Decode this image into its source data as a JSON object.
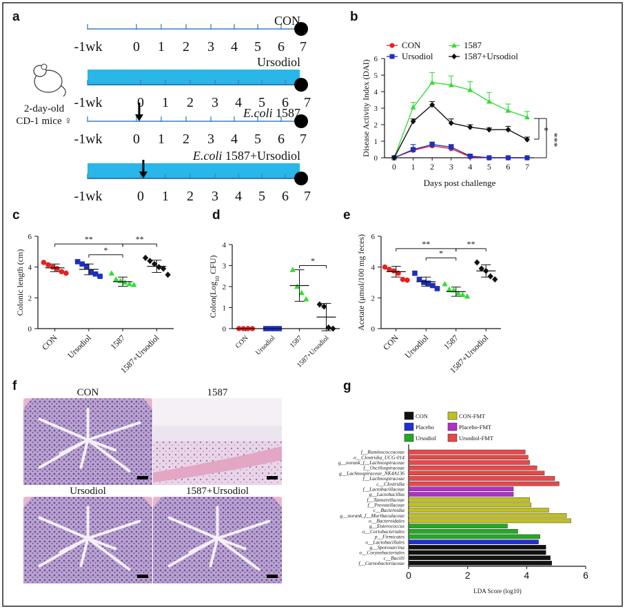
{
  "panel_letters": [
    "a",
    "b",
    "c",
    "d",
    "e",
    "f",
    "g"
  ],
  "panel_a": {
    "tick_labels": [
      "-1wk",
      "0",
      "1",
      "2",
      "3",
      "4",
      "5",
      "6",
      "7"
    ],
    "groups": [
      {
        "label": "CON",
        "italic_part": "",
        "filled": false,
        "arrow": false
      },
      {
        "label": "Ursodiol",
        "italic_part": "",
        "filled": true,
        "arrow": false
      },
      {
        "label": " 1587",
        "italic_part": "E.coli",
        "filled": false,
        "arrow": true
      },
      {
        "label": " 1587+Ursodiol",
        "italic_part": "E.coli",
        "filled": true,
        "arrow": true
      }
    ],
    "mouse_label_1": "2-day-old",
    "mouse_label_2": "CD-1 mice ♀",
    "colors": {
      "bar": "#29b6e8",
      "line": "#3a7fc0"
    }
  },
  "chart_data": [
    {
      "panel": "b",
      "type": "line",
      "ylabel": "Disease Activity Index (DAI)",
      "xlabel": "Days post challenge",
      "x": [
        0,
        1,
        2,
        3,
        4,
        5,
        6,
        7
      ],
      "ylim": [
        0,
        6
      ],
      "yticks": [
        "0",
        "1",
        "2",
        "3",
        "4",
        "5",
        "6"
      ],
      "xticks": [
        "0",
        "1",
        "2",
        "3",
        "4",
        "5",
        "6",
        "7"
      ],
      "series": [
        {
          "name": "CON",
          "color": "#e82020",
          "marker": "circle",
          "values": [
            0,
            0.45,
            0.72,
            0.55,
            0.05,
            0,
            0,
            0
          ],
          "errors": [
            0,
            0.1,
            0.1,
            0.1,
            0.05,
            0,
            0,
            0
          ]
        },
        {
          "name": "Ursodiol",
          "color": "#1f2fbf",
          "marker": "square",
          "values": [
            0,
            0.5,
            0.8,
            0.65,
            0.1,
            0,
            0,
            0
          ],
          "errors": [
            0,
            0.3,
            0.15,
            0.15,
            0.1,
            0,
            0,
            0
          ]
        },
        {
          "name": "1587",
          "color": "#33dd33",
          "marker": "triangle",
          "values": [
            0,
            3.05,
            4.55,
            4.4,
            4.1,
            3.4,
            2.85,
            2.45
          ],
          "errors": [
            0,
            0.3,
            0.6,
            0.55,
            0.5,
            0.55,
            0.4,
            0.35
          ]
        },
        {
          "name": "1587+Ursodiol",
          "color": "#111111",
          "marker": "diamond",
          "values": [
            0,
            2.2,
            3.2,
            2.1,
            1.85,
            1.7,
            1.7,
            1.1
          ],
          "errors": [
            0,
            0.15,
            0.2,
            0.25,
            0.15,
            0.1,
            0.2,
            0.15
          ]
        }
      ],
      "legend_position": "top",
      "significance": [
        "*",
        "***"
      ]
    },
    {
      "panel": "c",
      "type": "scatter",
      "ylabel": "Colonic length (cm)",
      "ylim": [
        0,
        6
      ],
      "yticks": [
        "0",
        "2",
        "4",
        "6"
      ],
      "categories": [
        "CON",
        "Ursodiol",
        "1587",
        "1587+Ursodiol"
      ],
      "series": [
        {
          "name": "CON",
          "color": "#e82020",
          "marker": "circle",
          "points": [
            4.3,
            4.15,
            4.0,
            3.9,
            3.7,
            3.6
          ],
          "mean": 3.95,
          "sd": 0.25
        },
        {
          "name": "Ursodiol",
          "color": "#1f2fbf",
          "marker": "square",
          "points": [
            4.35,
            4.2,
            4.05,
            3.7,
            3.55,
            3.4
          ],
          "mean": 3.85,
          "sd": 0.35
        },
        {
          "name": "1587",
          "color": "#33dd33",
          "marker": "triangle",
          "points": [
            3.6,
            3.2,
            3.1,
            3.0,
            2.9,
            2.85
          ],
          "mean": 3.05,
          "sd": 0.3
        },
        {
          "name": "1587+Ursodiol",
          "color": "#111111",
          "marker": "diamond",
          "points": [
            4.6,
            4.4,
            4.2,
            4.0,
            3.9,
            3.5
          ],
          "mean": 4.05,
          "sd": 0.4
        }
      ],
      "significance": [
        {
          "from": 0,
          "to": 2,
          "label": "**",
          "y": 5.5
        },
        {
          "from": 1,
          "to": 2,
          "label": "*",
          "y": 4.8
        },
        {
          "from": 2,
          "to": 3,
          "label": "**",
          "y": 5.5
        }
      ]
    },
    {
      "panel": "d",
      "type": "scatter",
      "ylabel": "Colon(Log",
      "ylabel_sub": "10",
      "ylabel_tail": " CFU)",
      "ylim": [
        0,
        4
      ],
      "yticks": [
        "0",
        "1",
        "2",
        "3",
        "4"
      ],
      "categories": [
        "CON",
        "Ursodiol",
        "1587",
        "1587+Ursodiol"
      ],
      "series": [
        {
          "name": "CON",
          "color": "#e82020",
          "marker": "circle",
          "points": [
            0,
            0,
            0,
            0
          ],
          "mean": 0,
          "sd": 0
        },
        {
          "name": "Ursodiol",
          "color": "#1f2fbf",
          "marker": "square",
          "points": [
            0,
            0,
            0,
            0
          ],
          "mean": 0,
          "sd": 0
        },
        {
          "name": "1587",
          "color": "#33dd33",
          "marker": "triangle",
          "points": [
            2.8,
            2.0,
            1.7,
            1.4
          ],
          "mean": 2.05,
          "sd": 0.75
        },
        {
          "name": "1587+Ursodiol",
          "color": "#111111",
          "marker": "diamond",
          "points": [
            1.15,
            1.05,
            0.05,
            0.0
          ],
          "mean": 0.55,
          "sd": 0.65
        }
      ],
      "significance": [
        {
          "from": 2,
          "to": 3,
          "label": "*",
          "y": 3.0
        }
      ]
    },
    {
      "panel": "e",
      "type": "scatter",
      "ylabel": "Acetate (μmol/100 mg feces)",
      "ylim": [
        0,
        6
      ],
      "yticks": [
        "0",
        "2",
        "4",
        "6"
      ],
      "categories": [
        "CON",
        "Ursodiol",
        "1587",
        "1587+Ursodiol"
      ],
      "series": [
        {
          "name": "CON",
          "color": "#e82020",
          "marker": "circle",
          "points": [
            4.0,
            3.85,
            3.75,
            3.6,
            3.2,
            3.15
          ],
          "mean": 3.7,
          "sd": 0.35
        },
        {
          "name": "Ursodiol",
          "color": "#1f2fbf",
          "marker": "square",
          "points": [
            3.6,
            3.2,
            3.0,
            2.95,
            2.8,
            2.6
          ],
          "mean": 3.05,
          "sd": 0.3
        },
        {
          "name": "1587",
          "color": "#33dd33",
          "marker": "triangle",
          "points": [
            2.9,
            2.55,
            2.5,
            2.3,
            2.2,
            2.1
          ],
          "mean": 2.4,
          "sd": 0.3
        },
        {
          "name": "1587+Ursodiol",
          "color": "#111111",
          "marker": "diamond",
          "points": [
            4.3,
            3.9,
            3.75,
            3.4,
            3.2
          ],
          "mean": 3.75,
          "sd": 0.4
        }
      ],
      "significance": [
        {
          "from": 0,
          "to": 2,
          "label": "**",
          "y": 5.2
        },
        {
          "from": 1,
          "to": 2,
          "label": "*",
          "y": 4.6
        },
        {
          "from": 2,
          "to": 3,
          "label": "**",
          "y": 5.2
        }
      ]
    },
    {
      "panel": "g",
      "type": "bar",
      "orientation": "horizontal",
      "xlabel": "LDA Score (log10)",
      "xlim": [
        0,
        6
      ],
      "xticks": [
        "0",
        "2",
        "4",
        "6"
      ],
      "legend": [
        {
          "label": "CON",
          "color": "#111111"
        },
        {
          "label": "CON-FMT",
          "color": "#c0c020"
        },
        {
          "label": "Placebo",
          "color": "#1f2fd8"
        },
        {
          "label": "Placebo-FMT",
          "color": "#b030c8"
        },
        {
          "label": "Ursodiol",
          "color": "#22aa22"
        },
        {
          "label": "Ursodiol-FMT",
          "color": "#e84848"
        }
      ],
      "categories": [
        "f__Ruminococcaceae",
        "o__Clostridia_UCG-014",
        "g__norank_f__Lachnospiraceae",
        "f__Oscillospiraceae",
        "g__Lachnospiraceae_NK4A136",
        "f__Lachnospiraceae",
        "c__Clostridia",
        "f__Lactobacillaceae",
        "g__Lactobacillus",
        "f__Tannerellaceae",
        "f__Prevotellaceae",
        "c__Bacteroidia",
        "g__norank_f__Muribaculaceae",
        "o__Bacteroidales",
        "g__Enterococcus",
        "o__Coriobacteriales",
        "p__Firmicutes",
        "o__Lactobacillales",
        "g__Sporosarcina",
        "o__Corynebacteriales",
        "c__Bacilli",
        "f__Carnobacteriaceae"
      ],
      "values": [
        3.95,
        4.05,
        4.1,
        4.35,
        4.6,
        4.95,
        5.1,
        3.55,
        3.55,
        4.1,
        4.15,
        4.75,
        5.35,
        5.5,
        3.35,
        3.7,
        4.45,
        4.4,
        4.65,
        4.65,
        4.8,
        4.85
      ],
      "groups": [
        "Ursodiol-FMT",
        "Ursodiol-FMT",
        "Ursodiol-FMT",
        "Ursodiol-FMT",
        "Ursodiol-FMT",
        "Ursodiol-FMT",
        "Ursodiol-FMT",
        "Placebo-FMT",
        "Placebo-FMT",
        "CON-FMT",
        "CON-FMT",
        "CON-FMT",
        "CON-FMT",
        "CON-FMT",
        "Ursodiol",
        "Ursodiol",
        "Ursodiol",
        "Placebo",
        "CON",
        "CON",
        "CON",
        "CON"
      ]
    }
  ],
  "panel_f": {
    "titles": [
      "CON",
      "1587",
      "Ursodiol",
      "1587+Ursodiol"
    ]
  }
}
